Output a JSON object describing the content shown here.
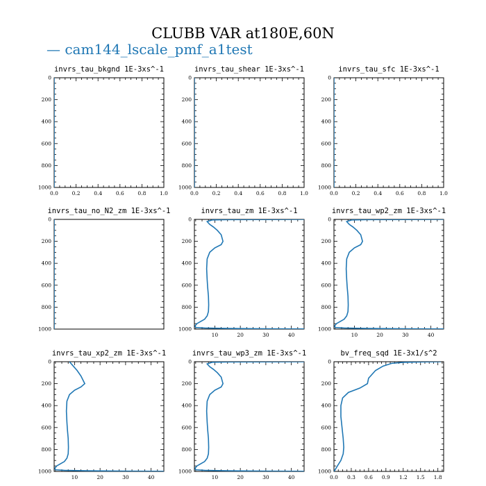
{
  "title": "CLUBB VAR at180E,60N",
  "legend": {
    "label": "— cam144_lscale_pmf_a1test",
    "color": "#1f77b4"
  },
  "chart_data": [
    {
      "type": "line",
      "title": "invrs_tau_bkgnd   1E-3xs^-1",
      "xlim": [
        0,
        1
      ],
      "ylim": [
        0,
        1000
      ],
      "y_inverted": true,
      "xticks": [
        "0.0",
        "0.2",
        "0.4",
        "0.6",
        "0.8",
        "1.0"
      ],
      "xtick_vals": [
        0,
        0.2,
        0.4,
        0.6,
        0.8,
        1.0
      ],
      "yticks": [
        "0",
        "200",
        "400",
        "600",
        "800",
        "1000"
      ],
      "ytick_vals": [
        0,
        200,
        400,
        600,
        800,
        1000
      ],
      "series": [
        {
          "color": "#1f77b4",
          "x": [
            0,
            0,
            0,
            0
          ],
          "y": [
            0,
            300,
            700,
            1000
          ]
        }
      ]
    },
    {
      "type": "line",
      "title": "invrs_tau_shear   1E-3xs^-1",
      "xlim": [
        0,
        1
      ],
      "ylim": [
        0,
        1000
      ],
      "y_inverted": true,
      "xticks": [
        "0.0",
        "0.2",
        "0.4",
        "0.6",
        "0.8",
        "1.0"
      ],
      "xtick_vals": [
        0,
        0.2,
        0.4,
        0.6,
        0.8,
        1.0
      ],
      "yticks": [
        "0",
        "200",
        "400",
        "600",
        "800",
        "1000"
      ],
      "ytick_vals": [
        0,
        200,
        400,
        600,
        800,
        1000
      ],
      "series": [
        {
          "color": "#1f77b4",
          "x": [
            0,
            0,
            0,
            0
          ],
          "y": [
            0,
            300,
            700,
            1000
          ]
        }
      ]
    },
    {
      "type": "line",
      "title": "invrs_tau_sfc   1E-3xs^-1",
      "xlim": [
        0,
        1
      ],
      "ylim": [
        0,
        1000
      ],
      "y_inverted": true,
      "xticks": [
        "0.0",
        "0.2",
        "0.4",
        "0.6",
        "0.8",
        "1.0"
      ],
      "xtick_vals": [
        0,
        0.2,
        0.4,
        0.6,
        0.8,
        1.0
      ],
      "yticks": [
        "0",
        "200",
        "400",
        "600",
        "800",
        "1000"
      ],
      "ytick_vals": [
        0,
        200,
        400,
        600,
        800,
        1000
      ],
      "series": [
        {
          "color": "#1f77b4",
          "x": [
            0,
            0,
            0,
            0
          ],
          "y": [
            0,
            300,
            700,
            1000
          ]
        }
      ]
    },
    {
      "type": "line",
      "title": "invrs_tau_no_N2_zm   1E-3xs^-1",
      "xlim": [
        0,
        1
      ],
      "ylim": [
        0,
        1000
      ],
      "y_inverted": true,
      "xticks": [],
      "xtick_vals": [],
      "yticks": [
        "0",
        "200",
        "400",
        "600",
        "800",
        "1000"
      ],
      "ytick_vals": [
        0,
        200,
        400,
        600,
        800,
        1000
      ],
      "series": [
        {
          "color": "#1f77b4",
          "x": [
            0,
            0,
            0,
            0
          ],
          "y": [
            0,
            300,
            700,
            1000
          ]
        }
      ]
    },
    {
      "type": "line",
      "title": "invrs_tau_zm   1E-3xs^-1",
      "xlim": [
        2,
        45
      ],
      "ylim": [
        0,
        1000
      ],
      "y_inverted": true,
      "xticks": [
        "10",
        "20",
        "30",
        "40"
      ],
      "xtick_vals": [
        10,
        20,
        30,
        40
      ],
      "yticks": [
        "0",
        "200",
        "400",
        "600",
        "800",
        "1000"
      ],
      "ytick_vals": [
        0,
        200,
        400,
        600,
        800,
        1000
      ],
      "series": [
        {
          "color": "#1f77b4",
          "x": [
            45,
            30,
            15,
            9,
            7,
            8,
            9.5,
            11,
            12.5,
            13.2,
            12.5,
            10,
            8,
            7,
            6.8,
            7,
            7.2,
            7.5,
            7.6,
            7.5,
            7,
            6,
            4.5,
            3,
            2.3,
            2.5,
            6,
            15,
            30,
            45
          ],
          "y": [
            0,
            1,
            2,
            5,
            20,
            45,
            70,
            100,
            140,
            200,
            230,
            260,
            300,
            360,
            450,
            550,
            620,
            700,
            780,
            840,
            880,
            910,
            930,
            950,
            970,
            985,
            990,
            994,
            997,
            999
          ]
        }
      ]
    },
    {
      "type": "line",
      "title": "invrs_tau_wp2_zm   1E-3xs^-1",
      "xlim": [
        2,
        45
      ],
      "ylim": [
        0,
        1000
      ],
      "y_inverted": true,
      "xticks": [
        "10",
        "20",
        "30",
        "40"
      ],
      "xtick_vals": [
        10,
        20,
        30,
        40
      ],
      "yticks": [
        "0",
        "200",
        "400",
        "600",
        "800",
        "1000"
      ],
      "ytick_vals": [
        0,
        200,
        400,
        600,
        800,
        1000
      ],
      "series": [
        {
          "color": "#1f77b4",
          "x": [
            45,
            30,
            15,
            9,
            7,
            8,
            9.5,
            11,
            12.5,
            13.2,
            12.5,
            10,
            8,
            7,
            6.8,
            7,
            7.2,
            7.5,
            7.6,
            7.5,
            7,
            6,
            4.5,
            3,
            2.3,
            2.5,
            6,
            15,
            30,
            45
          ],
          "y": [
            0,
            1,
            2,
            5,
            20,
            45,
            70,
            100,
            140,
            200,
            230,
            260,
            300,
            360,
            450,
            550,
            620,
            700,
            780,
            840,
            880,
            910,
            930,
            950,
            970,
            985,
            990,
            994,
            997,
            999
          ]
        }
      ]
    },
    {
      "type": "line",
      "title": "invrs_tau_xp2_zm   1E-3xs^-1",
      "xlim": [
        2,
        45
      ],
      "ylim": [
        0,
        1000
      ],
      "y_inverted": true,
      "xticks": [
        "10",
        "20",
        "30",
        "40"
      ],
      "xtick_vals": [
        10,
        20,
        30,
        40
      ],
      "yticks": [
        "0",
        "200",
        "400",
        "600",
        "800",
        "1000"
      ],
      "ytick_vals": [
        0,
        200,
        400,
        600,
        800,
        1000
      ],
      "series": [
        {
          "color": "#1f77b4",
          "x": [
            8,
            9.5,
            11,
            12.5,
            14,
            12.5,
            10,
            8,
            7,
            6.8,
            7,
            7.2,
            7.5,
            7.6,
            7.5,
            7,
            6,
            4.5,
            3,
            2.3,
            2.5,
            6,
            15,
            30,
            45
          ],
          "y": [
            0,
            40,
            80,
            130,
            200,
            230,
            260,
            300,
            360,
            450,
            550,
            620,
            700,
            780,
            840,
            880,
            910,
            930,
            950,
            970,
            985,
            990,
            994,
            997,
            999
          ]
        }
      ]
    },
    {
      "type": "line",
      "title": "invrs_tau_wp3_zm   1E-3xs^-1",
      "xlim": [
        2,
        45
      ],
      "ylim": [
        0,
        1000
      ],
      "y_inverted": true,
      "xticks": [
        "10",
        "20",
        "30",
        "40"
      ],
      "xtick_vals": [
        10,
        20,
        30,
        40
      ],
      "yticks": [
        "0",
        "200",
        "400",
        "600",
        "800",
        "1000"
      ],
      "ytick_vals": [
        0,
        200,
        400,
        600,
        800,
        1000
      ],
      "series": [
        {
          "color": "#1f77b4",
          "x": [
            45,
            30,
            15,
            9,
            7,
            8,
            9.5,
            11,
            12.5,
            13.2,
            12.5,
            10,
            8,
            7,
            6.8,
            7,
            7.2,
            7.5,
            7.6,
            7.5,
            7,
            6,
            4.5,
            3,
            2.3,
            2.5,
            6,
            15,
            30,
            45
          ],
          "y": [
            0,
            1,
            2,
            5,
            20,
            45,
            70,
            100,
            140,
            200,
            230,
            260,
            300,
            360,
            450,
            550,
            620,
            700,
            780,
            840,
            880,
            910,
            930,
            950,
            970,
            985,
            990,
            994,
            997,
            999
          ]
        }
      ]
    },
    {
      "type": "line",
      "title": "bv_freq_sqd   1E-3x1/s^2",
      "xlim": [
        0,
        1.9
      ],
      "ylim": [
        0,
        1000
      ],
      "y_inverted": true,
      "xticks": [
        "0.0",
        "0.3",
        "0.6",
        "0.9",
        "1.2",
        "1.5",
        "1.8"
      ],
      "xtick_vals": [
        0,
        0.3,
        0.6,
        0.9,
        1.2,
        1.5,
        1.8
      ],
      "yticks": [
        "0",
        "200",
        "400",
        "600",
        "800",
        "1000"
      ],
      "ytick_vals": [
        0,
        200,
        400,
        600,
        800,
        1000
      ],
      "series": [
        {
          "color": "#1f77b4",
          "x": [
            1.85,
            1.5,
            1.2,
            1.0,
            0.85,
            0.72,
            0.6,
            0.58,
            0.45,
            0.25,
            0.15,
            0.12,
            0.12,
            0.14,
            0.16,
            0.17,
            0.16,
            0.12,
            0.06,
            0.02,
            0.0
          ],
          "y": [
            0,
            2,
            6,
            15,
            40,
            80,
            150,
            200,
            240,
            280,
            330,
            400,
            500,
            600,
            700,
            780,
            840,
            900,
            950,
            985,
            1000
          ]
        }
      ]
    }
  ]
}
